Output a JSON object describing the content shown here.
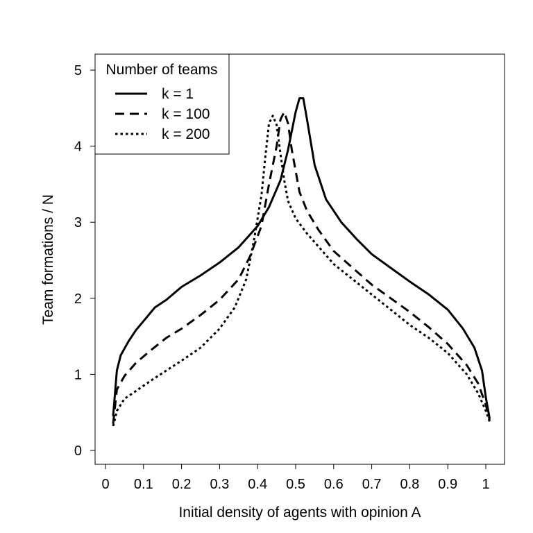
{
  "chart_data": {
    "type": "line",
    "title": "",
    "xlabel": "Initial density of agents with opinion A",
    "ylabel": "Team formations / N",
    "xlim": [
      0,
      1
    ],
    "ylim": [
      0,
      5
    ],
    "x_ticks": [
      "0",
      "0.1",
      "0.2",
      "0.3",
      "0.4",
      "0.5",
      "0.6",
      "0.7",
      "0.8",
      "0.9",
      "1"
    ],
    "y_ticks": [
      "0",
      "1",
      "2",
      "3",
      "4",
      "5"
    ],
    "grid": false,
    "legend": {
      "title": "Number of teams",
      "placement": "top-left"
    },
    "series": [
      {
        "name": "k = 1",
        "style": "solid",
        "x": [
          0.02,
          0.03,
          0.04,
          0.06,
          0.08,
          0.1,
          0.13,
          0.16,
          0.2,
          0.25,
          0.3,
          0.35,
          0.4,
          0.43,
          0.46,
          0.48,
          0.5,
          0.51,
          0.52,
          0.53,
          0.55,
          0.58,
          0.62,
          0.66,
          0.7,
          0.75,
          0.8,
          0.85,
          0.9,
          0.94,
          0.97,
          0.99,
          1.0,
          1.01
        ],
        "y": [
          0.45,
          1.05,
          1.25,
          1.43,
          1.58,
          1.7,
          1.88,
          1.98,
          2.15,
          2.3,
          2.47,
          2.67,
          2.95,
          3.2,
          3.55,
          3.95,
          4.45,
          4.63,
          4.63,
          4.35,
          3.75,
          3.3,
          3.0,
          2.78,
          2.58,
          2.4,
          2.22,
          2.05,
          1.85,
          1.6,
          1.35,
          1.05,
          0.7,
          0.42
        ]
      },
      {
        "name": "k = 100",
        "style": "dashed",
        "x": [
          0.02,
          0.03,
          0.05,
          0.08,
          0.12,
          0.16,
          0.2,
          0.25,
          0.3,
          0.35,
          0.38,
          0.41,
          0.43,
          0.45,
          0.46,
          0.47,
          0.48,
          0.49,
          0.51,
          0.53,
          0.56,
          0.6,
          0.65,
          0.7,
          0.75,
          0.8,
          0.85,
          0.9,
          0.95,
          0.98,
          1.0,
          1.01
        ],
        "y": [
          0.35,
          0.8,
          0.98,
          1.15,
          1.32,
          1.48,
          1.6,
          1.78,
          1.98,
          2.25,
          2.55,
          2.95,
          3.5,
          4.0,
          4.35,
          4.45,
          4.3,
          3.95,
          3.4,
          3.15,
          2.9,
          2.62,
          2.4,
          2.18,
          2.0,
          1.82,
          1.62,
          1.4,
          1.12,
          0.88,
          0.6,
          0.4
        ]
      },
      {
        "name": "k = 200",
        "style": "dotted",
        "x": [
          0.02,
          0.03,
          0.05,
          0.08,
          0.12,
          0.16,
          0.2,
          0.25,
          0.3,
          0.34,
          0.37,
          0.39,
          0.41,
          0.42,
          0.43,
          0.44,
          0.45,
          0.46,
          0.47,
          0.48,
          0.5,
          0.53,
          0.56,
          0.6,
          0.65,
          0.7,
          0.75,
          0.8,
          0.85,
          0.9,
          0.95,
          0.98,
          1.0,
          1.01
        ],
        "y": [
          0.32,
          0.52,
          0.68,
          0.78,
          0.92,
          1.05,
          1.18,
          1.35,
          1.6,
          1.88,
          2.25,
          2.75,
          3.35,
          3.85,
          4.3,
          4.4,
          4.28,
          3.9,
          3.55,
          3.28,
          3.05,
          2.85,
          2.68,
          2.45,
          2.25,
          2.05,
          1.85,
          1.65,
          1.48,
          1.28,
          1.0,
          0.75,
          0.52,
          0.38
        ]
      }
    ]
  }
}
